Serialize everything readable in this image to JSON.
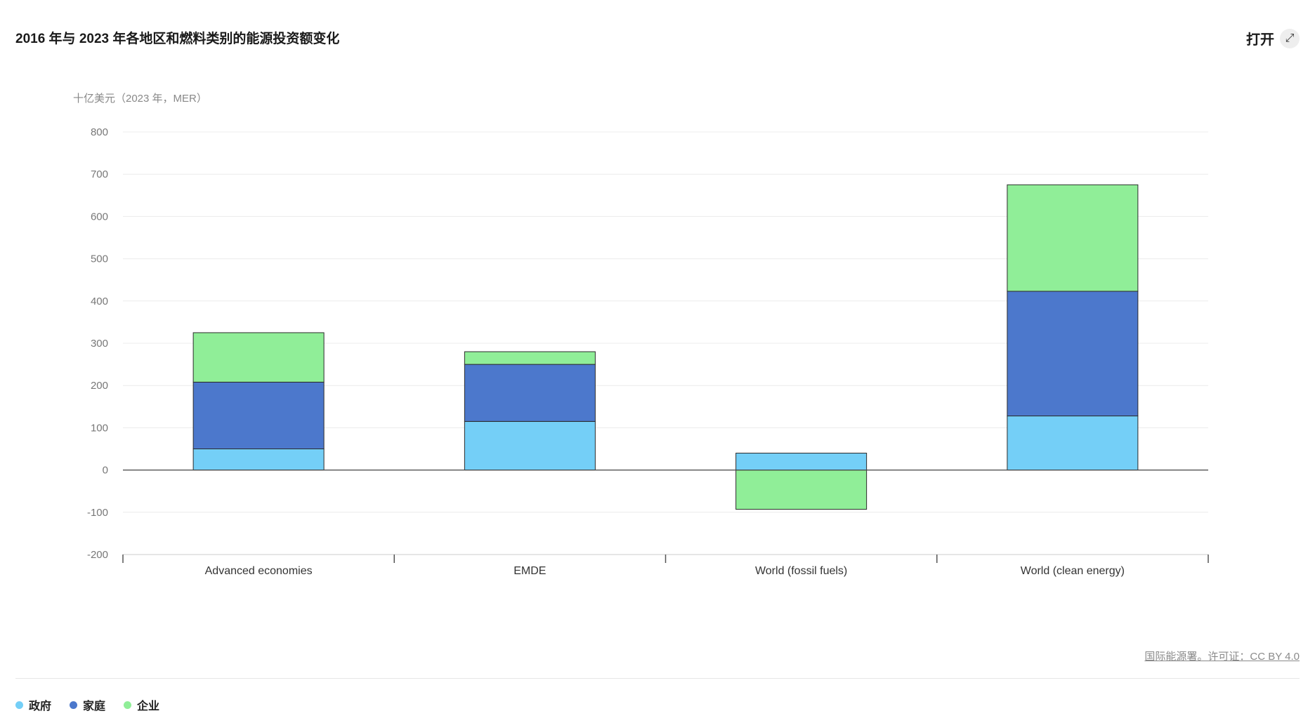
{
  "header": {
    "title": "2016 年与 2023 年各地区和燃料类别的能源投资额变化",
    "open_label": "打开",
    "open_icon": "expand-arrows-icon"
  },
  "source": {
    "label": "国际能源署。许可证：CC BY 4.0"
  },
  "chart_data": {
    "type": "bar",
    "stacked": true,
    "title": "2016 年与 2023 年各地区和燃料类别的能源投资额变化",
    "ylabel": "十亿美元（2023 年，MER）",
    "xlabel": "",
    "ylim": [
      -200,
      800
    ],
    "yticks": [
      -200,
      -100,
      0,
      100,
      200,
      300,
      400,
      500,
      600,
      700,
      800
    ],
    "grid": true,
    "legend_position": "bottom-left",
    "categories": [
      "Advanced economies",
      "EMDE",
      "World (fossil fuels)",
      "World (clean energy)"
    ],
    "series": [
      {
        "name": "政府",
        "color": "#74cff7",
        "values": [
          50,
          115,
          40,
          128
        ]
      },
      {
        "name": "家庭",
        "color": "#4c78cc",
        "values": [
          158,
          135,
          0,
          295
        ]
      },
      {
        "name": "企业",
        "color": "#90ee98",
        "values": [
          117,
          30,
          -93,
          252
        ]
      }
    ]
  }
}
